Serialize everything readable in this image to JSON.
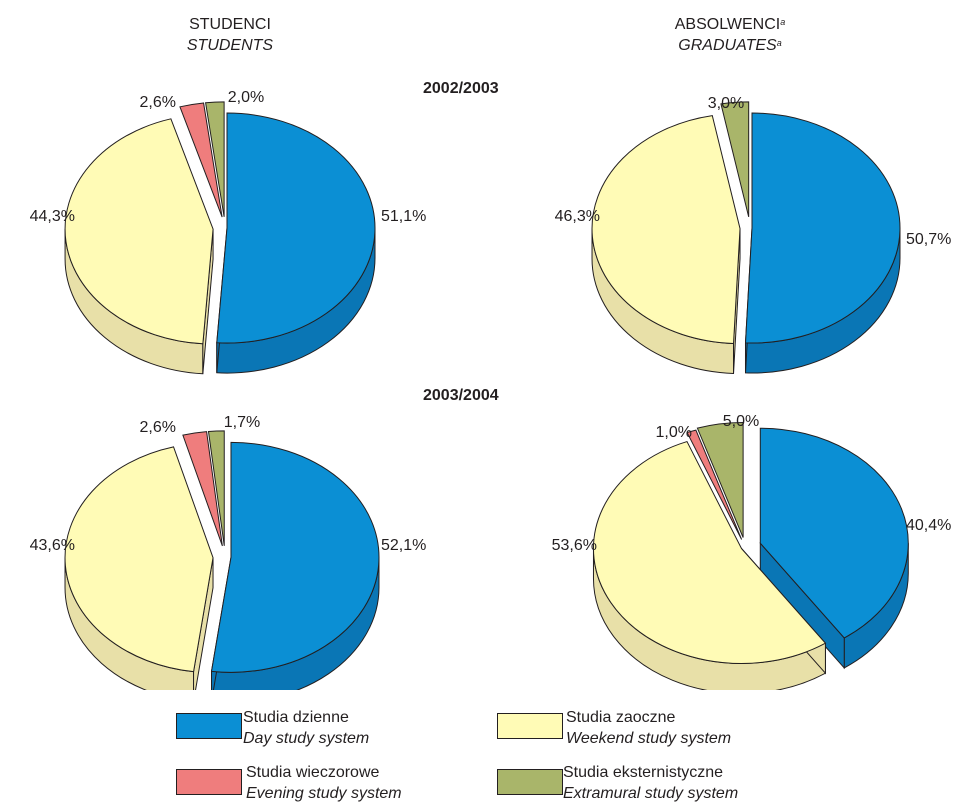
{
  "headers": {
    "students": {
      "pl": "STUDENCI",
      "en": "STUDENTS"
    },
    "graduates": {
      "pl": "ABSOLWENCI",
      "en": "GRADUATES",
      "footnote": "a"
    }
  },
  "years": [
    "2002/2003",
    "2003/2004"
  ],
  "colors": {
    "day": "#0b8fd4",
    "day_side": "#0a76b5",
    "weekend": "#fffbb6",
    "weekend_side": "#e8e0a8",
    "evening": "#ef7d7d",
    "evening_side": "#c96060",
    "extramural": "#a9b56a",
    "extramural_side": "#8a9450"
  },
  "legend": [
    {
      "key": "day",
      "pl": "Studia dzienne",
      "en": "Day study system"
    },
    {
      "key": "weekend",
      "pl": "Studia zaoczne",
      "en": "Weekend study system"
    },
    {
      "key": "evening",
      "pl": "Studia wieczorowe",
      "en": "Evening study system"
    },
    {
      "key": "extramural",
      "pl": "Studia eksternistyczne",
      "en": "Extramural study system"
    }
  ],
  "chart_data": [
    {
      "type": "pie",
      "group": "STUDENCI / STUDENTS",
      "year": "2002/2003",
      "slices": [
        {
          "key": "day",
          "value": 51.1,
          "label": "51,1%"
        },
        {
          "key": "weekend",
          "value": 44.3,
          "label": "44,3%"
        },
        {
          "key": "evening",
          "value": 2.6,
          "label": "2,6%"
        },
        {
          "key": "extramural",
          "value": 2.0,
          "label": "2,0%"
        }
      ]
    },
    {
      "type": "pie",
      "group": "ABSOLWENCI / GRADUATES",
      "year": "2002/2003",
      "slices": [
        {
          "key": "day",
          "value": 50.7,
          "label": "50,7%"
        },
        {
          "key": "weekend",
          "value": 46.3,
          "label": "46,3%"
        },
        {
          "key": "extramural",
          "value": 3.0,
          "label": "3,0%"
        }
      ]
    },
    {
      "type": "pie",
      "group": "STUDENCI / STUDENTS",
      "year": "2003/2004",
      "slices": [
        {
          "key": "day",
          "value": 52.1,
          "label": "52,1%"
        },
        {
          "key": "weekend",
          "value": 43.6,
          "label": "43,6%"
        },
        {
          "key": "evening",
          "value": 2.6,
          "label": "2,6%"
        },
        {
          "key": "extramural",
          "value": 1.7,
          "label": "1,7%"
        }
      ]
    },
    {
      "type": "pie",
      "group": "ABSOLWENCI / GRADUATES",
      "year": "2003/2004",
      "slices": [
        {
          "key": "day",
          "value": 40.4,
          "label": "40,4%"
        },
        {
          "key": "weekend",
          "value": 53.6,
          "label": "53,6%"
        },
        {
          "key": "evening",
          "value": 1.0,
          "label": "1,0%"
        },
        {
          "key": "extramural",
          "value": 5.0,
          "label": "5,0%"
        }
      ]
    }
  ]
}
